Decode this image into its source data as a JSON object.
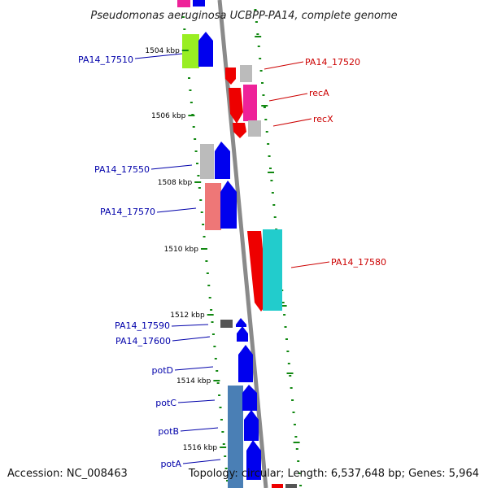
{
  "title": "Pseudomonas aeruginosa UCBPP-PA14, complete genome",
  "footer": {
    "accession": "Accession: NC_008463",
    "topology": "Topology: circular; Length: 6,537,648 bp; Genes: 5,964"
  },
  "colors": {
    "backbone": "#8a8a8a",
    "tick": "#118811",
    "forward_label": "#0000aa",
    "reverse_label": "#cc0000",
    "blue": "#0000ee",
    "red": "#ee0000",
    "magenta": "#ee2299",
    "grey": "#bbbbbb",
    "lightgreen": "#99ee22",
    "salmon": "#ee7777",
    "cyan": "#22cccc",
    "steelblue": "#4a7fb5",
    "darkgrey": "#555555"
  },
  "scale_ticks": [
    {
      "label": "1504 kbp"
    },
    {
      "label": "1506 kbp"
    },
    {
      "label": "1508 kbp"
    },
    {
      "label": "1510 kbp"
    },
    {
      "label": "1512 kbp"
    },
    {
      "label": "1514 kbp"
    },
    {
      "label": "1516 kbp"
    }
  ],
  "gene_labels": {
    "left": [
      "PA14_17510",
      "PA14_17550",
      "PA14_17570",
      "PA14_17590",
      "PA14_17600",
      "potD",
      "potC",
      "potB",
      "potA"
    ],
    "right": [
      "PA14_17520",
      "recA",
      "recX",
      "PA14_17580"
    ]
  }
}
